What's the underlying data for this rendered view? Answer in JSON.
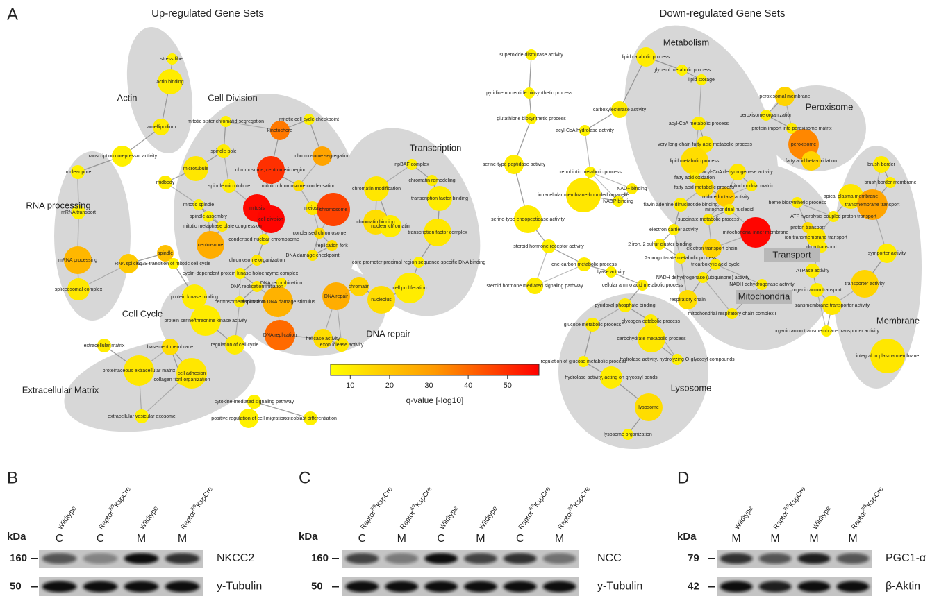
{
  "panel_a": {
    "label": "A",
    "up_title": "Up-regulated Gene Sets",
    "down_title": "Down-regulated Gene Sets",
    "clusters": [
      "Actin",
      "RNA processing",
      "Cell Division",
      "Transcription",
      "Cell Cycle",
      "DNA repair",
      "Extracellular Matrix",
      "Metabolism",
      "Peroxisome",
      "Transport",
      "Mitochondria",
      "Lysosome",
      "Membrane"
    ],
    "nodes": [
      {
        "label": "stress fiber",
        "q": 8
      },
      {
        "label": "actin binding",
        "q": 9
      },
      {
        "label": "lamellipodium",
        "q": 9
      },
      {
        "label": "transcription corepressor activity",
        "q": 8
      },
      {
        "label": "nuclear pore",
        "q": 8
      },
      {
        "label": "mRNA transport",
        "q": 8
      },
      {
        "label": "mRNA processing",
        "q": 20
      },
      {
        "label": "RNA splicing",
        "q": 16
      },
      {
        "label": "spliceosomal complex",
        "q": 10
      },
      {
        "label": "mitotic sister chromatid segregation",
        "q": 8
      },
      {
        "label": "mitotic cell cycle checkpoint",
        "q": 8
      },
      {
        "label": "kinetochore",
        "q": 33
      },
      {
        "label": "chromosome segregation",
        "q": 24
      },
      {
        "label": "spindle pole",
        "q": 9
      },
      {
        "label": "microtubule",
        "q": 10
      },
      {
        "label": "chromosome, centromeric region",
        "q": 48
      },
      {
        "label": "midbody",
        "q": 9
      },
      {
        "label": "spindle microtubule",
        "q": 9
      },
      {
        "label": "mitotic chromosome condensation",
        "q": 12
      },
      {
        "label": "mitosis",
        "q": 56
      },
      {
        "label": "cell division",
        "q": 57
      },
      {
        "label": "meiosis",
        "q": 10
      },
      {
        "label": "chromosome",
        "q": 44
      },
      {
        "label": "mitotic spindle",
        "q": 8
      },
      {
        "label": "spindle assembly",
        "q": 8
      },
      {
        "label": "mitotic metaphase plate congression",
        "q": 10
      },
      {
        "label": "condensed nuclear chromosome",
        "q": 9
      },
      {
        "label": "condensed chromosome",
        "q": 12
      },
      {
        "label": "centrosome",
        "q": 22
      },
      {
        "label": "spindle",
        "q": 18
      },
      {
        "label": "G1/S transition of mitotic cell cycle",
        "q": 8
      },
      {
        "label": "chromosome organization",
        "q": 10
      },
      {
        "label": "cyclin-dependent protein kinase holoenzyme complex",
        "q": 8
      },
      {
        "label": "DNA damage checkpoint",
        "q": 10
      },
      {
        "label": "replication fork",
        "q": 12
      },
      {
        "label": "DNA replication initiation",
        "q": 10
      },
      {
        "label": "DNA recombination",
        "q": 10
      },
      {
        "label": "DNA repair",
        "q": 22
      },
      {
        "label": "response to DNA damage stimulus",
        "q": 21
      },
      {
        "label": "centrosome duplication",
        "q": 9
      },
      {
        "label": "chromatin",
        "q": 14
      },
      {
        "label": "nucleolus",
        "q": 12
      },
      {
        "label": "DNA replication",
        "q": 36
      },
      {
        "label": "helicase activity",
        "q": 12
      },
      {
        "label": "exonuclease activity",
        "q": 10
      },
      {
        "label": "npBAF complex",
        "q": 8
      },
      {
        "label": "chromatin modification",
        "q": 10
      },
      {
        "label": "chromatin remodeling",
        "q": 9
      },
      {
        "label": "transcription factor binding",
        "q": 9
      },
      {
        "label": "chromatin binding",
        "q": 12
      },
      {
        "label": "nuclear chromatin",
        "q": 9
      },
      {
        "label": "transcription factor complex",
        "q": 10
      },
      {
        "label": "core promoter proximal region sequence-specific DNA binding",
        "q": 8
      },
      {
        "label": "cell proliferation",
        "q": 9
      },
      {
        "label": "protein kinase binding",
        "q": 9
      },
      {
        "label": "protein serine/threonine kinase activity",
        "q": 9
      },
      {
        "label": "regulation of cell cycle",
        "q": 9
      },
      {
        "label": "extracellular matrix",
        "q": 9
      },
      {
        "label": "basement membrane",
        "q": 12
      },
      {
        "label": "proteinaceous extracellular matrix",
        "q": 10
      },
      {
        "label": "collagen fibril organization",
        "q": 8
      },
      {
        "label": "cell adhesion",
        "q": 10
      },
      {
        "label": "extracellular vesicular exosome",
        "q": 8
      },
      {
        "label": "positive regulation of cell migration",
        "q": 8
      },
      {
        "label": "cytokine-mediated signaling pathway",
        "q": 8
      },
      {
        "label": "osteoblast differentiation",
        "q": 8
      },
      {
        "label": "superoxide dismutase activity",
        "q": 8
      },
      {
        "label": "pyridine nucleotide biosynthetic process",
        "q": 8
      },
      {
        "label": "glutathione biosynthetic process",
        "q": 8
      },
      {
        "label": "acyl-CoA hydrolase activity",
        "q": 8
      },
      {
        "label": "serine-type peptidase activity",
        "q": 9
      },
      {
        "label": "intracellular membrane-bounded organelle",
        "q": 10
      },
      {
        "label": "serine-type endopeptidase activity",
        "q": 9
      },
      {
        "label": "xenobiotic metabolic process",
        "q": 8
      },
      {
        "label": "steroid hormone receptor activity",
        "q": 8
      },
      {
        "label": "one-carbon metabolic process",
        "q": 9
      },
      {
        "label": "steroid hormone mediated signaling pathway",
        "q": 9
      },
      {
        "label": "lipid catabolic process",
        "q": 9
      },
      {
        "label": "glycerol metabolic process",
        "q": 8
      },
      {
        "label": "lipid storage",
        "q": 8
      },
      {
        "label": "carboxylesterase activity",
        "q": 9
      },
      {
        "label": "peroxisomal membrane",
        "q": 14
      },
      {
        "label": "peroxisome organization",
        "q": 9
      },
      {
        "label": "acyl-CoA metabolic process",
        "q": 9
      },
      {
        "label": "protein import into peroxisome matrix",
        "q": 9
      },
      {
        "label": "peroxisome",
        "q": 30
      },
      {
        "label": "very long-chain fatty acid metabolic process",
        "q": 10
      },
      {
        "label": "lipid metabolic process",
        "q": 12
      },
      {
        "label": "fatty acid beta-oxidation",
        "q": 14
      },
      {
        "label": "acyl-CoA dehydrogenase activity",
        "q": 10
      },
      {
        "label": "fatty acid oxidation",
        "q": 9
      },
      {
        "label": "NAD+ binding",
        "q": 9
      },
      {
        "label": "fatty acid metabolic process",
        "q": 12
      },
      {
        "label": "mitochondrial matrix",
        "q": 9
      },
      {
        "label": "oxidoreductase activity",
        "q": 16
      },
      {
        "label": "NADP binding",
        "q": 8
      },
      {
        "label": "flavin adenine dinucleotide binding",
        "q": 9
      },
      {
        "label": "mitochondrial nucleoid",
        "q": 9
      },
      {
        "label": "heme biosynthetic process",
        "q": 9
      },
      {
        "label": "succinate metabolic process",
        "q": 10
      },
      {
        "label": "mitochondrial inner membrane",
        "q": 57
      },
      {
        "label": "electron carrier activity",
        "q": 9
      },
      {
        "label": "proton transport",
        "q": 12
      },
      {
        "label": "ATP hydrolysis coupled proton transport",
        "q": 9
      },
      {
        "label": "ion transmembrane transport",
        "q": 10
      },
      {
        "label": "drug transport",
        "q": 9
      },
      {
        "label": "2 iron, 2 sulfur cluster binding",
        "q": 9
      },
      {
        "label": "electron transport chain",
        "q": 14
      },
      {
        "label": "2-oxoglutarate metabolic process",
        "q": 9
      },
      {
        "label": "tricarboxylic acid cycle",
        "q": 9
      },
      {
        "label": "lyase activity",
        "q": 8
      },
      {
        "label": "NADH dehydrogenase (ubiquinone) activity",
        "q": 9
      },
      {
        "label": "cellular amino acid metabolic process",
        "q": 9
      },
      {
        "label": "ATPase activity",
        "q": 9
      },
      {
        "label": "NADH dehydrogenase activity",
        "q": 9
      },
      {
        "label": "organic anion transport",
        "q": 9
      },
      {
        "label": "respiratory chain",
        "q": 12
      },
      {
        "label": "transmembrane transporter activity",
        "q": 10
      },
      {
        "label": "mitochondrial respiratory chain complex I",
        "q": 9
      },
      {
        "label": "organic anion transmembrane transporter activity",
        "q": 8
      },
      {
        "label": "pyridoxal phosphate binding",
        "q": 9
      },
      {
        "label": "glycogen catabolic process",
        "q": 9
      },
      {
        "label": "glucose metabolic process",
        "q": 9
      },
      {
        "label": "carbohydrate metabolic process",
        "q": 10
      },
      {
        "label": "hydrolase activity, hydrolyzing O-glycosyl compounds",
        "q": 8
      },
      {
        "label": "regulation of glucose metabolic process",
        "q": 8
      },
      {
        "label": "hydrolase activity, acting on glycosyl bonds",
        "q": 9
      },
      {
        "label": "lysosome",
        "q": 12
      },
      {
        "label": "lysosome organization",
        "q": 8
      },
      {
        "label": "brush border",
        "q": 9
      },
      {
        "label": "brush border membrane",
        "q": 9
      },
      {
        "label": "apical plasma membrane",
        "q": 10
      },
      {
        "label": "transmembrane transport",
        "q": 24
      },
      {
        "label": "symporter activity",
        "q": 9
      },
      {
        "label": "transporter activity",
        "q": 14
      },
      {
        "label": "integral to plasma membrane",
        "q": 10
      }
    ],
    "colorbar": {
      "label": "q-value [-log10]",
      "clim": [
        5,
        58
      ],
      "ticks": [
        10,
        20,
        30,
        40,
        50
      ]
    }
  },
  "panel_b": {
    "label": "B",
    "unit": "kDa",
    "lanes": [
      [
        "Wildtype"
      ],
      [
        "Raptor",
        "fl/fl",
        "KspCre"
      ],
      [
        "Wildtype"
      ],
      [
        "Raptor",
        "fl/fl",
        "KspCre"
      ]
    ],
    "compartments": [
      "C",
      "C",
      "M",
      "M"
    ],
    "markers": [
      160,
      50
    ],
    "proteins": [
      "NKCC2",
      "y-Tubulin"
    ]
  },
  "panel_c": {
    "label": "C",
    "unit": "kDa",
    "lanes": [
      [
        "Raptor",
        "fl/fl",
        "KspCre"
      ],
      [
        "Raptor",
        "fl/fl",
        "KspCre"
      ],
      [
        "Wildtype"
      ],
      [
        "Wildtype"
      ],
      [
        "Raptor",
        "fl/fl",
        "KspCre"
      ],
      [
        "Raptor",
        "fl/fl",
        "KspCre"
      ]
    ],
    "compartments": [
      "C",
      "M",
      "C",
      "M",
      "C",
      "M"
    ],
    "markers": [
      160,
      50
    ],
    "proteins": [
      "NCC",
      "y-Tubulin"
    ]
  },
  "panel_d": {
    "label": "D",
    "unit": "kDa",
    "lanes": [
      [
        "Wildtype"
      ],
      [
        "Raptor",
        "fl/fl",
        "KspCre"
      ],
      [
        "Wildtype"
      ],
      [
        "Raptor",
        "fl/fl",
        "KspCre"
      ]
    ],
    "compartments": [
      "M",
      "M",
      "M",
      "M"
    ],
    "markers": [
      79,
      42
    ],
    "proteins": [
      "PGC1-α",
      "β-Aktin"
    ]
  }
}
